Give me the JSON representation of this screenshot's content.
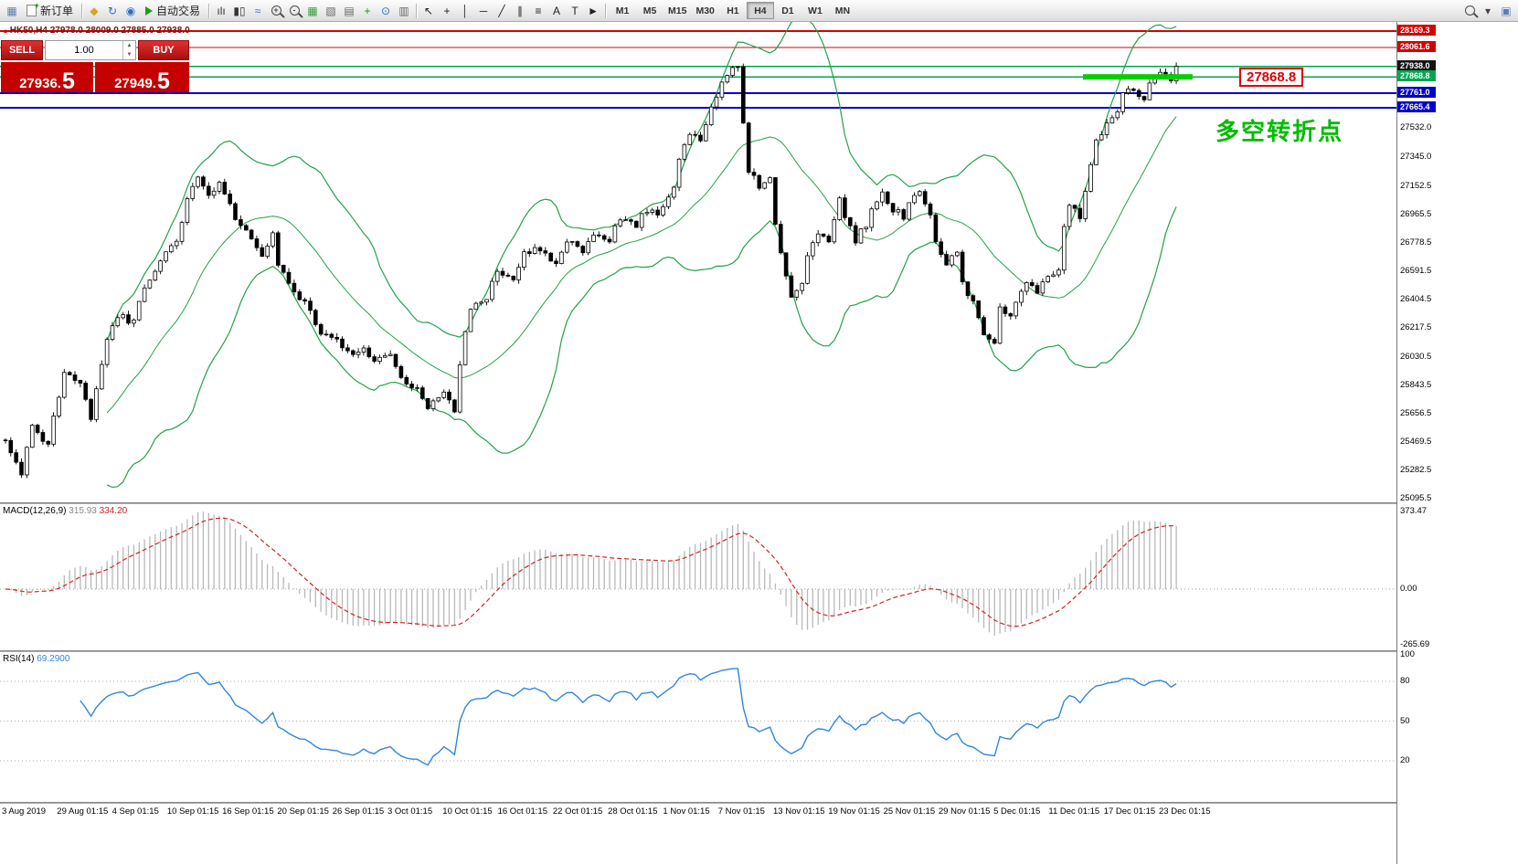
{
  "toolbar": {
    "new_order_label": "新订单",
    "autotrade_label": "自动交易",
    "timeframes": [
      "M1",
      "M5",
      "M15",
      "M30",
      "H1",
      "H4",
      "D1",
      "W1",
      "MN"
    ],
    "active_timeframe": "H4",
    "items": [
      {
        "t": "icon",
        "name": "chart-window-icon",
        "glyph": "▦",
        "c": "#5a7fb5"
      },
      {
        "t": "button",
        "name": "new-order-button",
        "icon": "doc",
        "label": "新订单"
      },
      {
        "t": "sep"
      },
      {
        "t": "icon",
        "name": "favorites-icon",
        "glyph": "◆",
        "c": "#d9a620"
      },
      {
        "t": "icon",
        "name": "refresh-icon",
        "glyph": "↻",
        "c": "#2f6fc4"
      },
      {
        "t": "icon",
        "name": "web-terminal-icon",
        "glyph": "◉",
        "c": "#2f6fc4"
      },
      {
        "t": "button",
        "name": "autotrade-button",
        "icon": "play",
        "label": "自动交易"
      },
      {
        "t": "sep"
      },
      {
        "t": "icon",
        "name": "bar-chart-icon",
        "glyph": "ılı",
        "c": "#333333"
      },
      {
        "t": "icon",
        "name": "candlestick-icon",
        "glyph": "▮▯",
        "c": "#333333"
      },
      {
        "t": "icon",
        "name": "line-chart-icon",
        "glyph": "≈",
        "c": "#2f6fc4"
      },
      {
        "t": "mag",
        "name": "zoom-in-icon",
        "sign": "+"
      },
      {
        "t": "mag",
        "name": "zoom-out-icon",
        "sign": "-"
      },
      {
        "t": "icon",
        "name": "tile-windows-icon",
        "glyph": "▦",
        "c": "#3a9d3a"
      },
      {
        "t": "icon",
        "name": "cascade-windows-icon",
        "glyph": "▧",
        "c": "#666666"
      },
      {
        "t": "icon",
        "name": "chart-profile-icon",
        "glyph": "▤",
        "c": "#666666"
      },
      {
        "t": "icon",
        "name": "indicators-icon",
        "glyph": "+",
        "c": "#0a9a0a"
      },
      {
        "t": "icon",
        "name": "periods-icon",
        "glyph": "⊙",
        "c": "#2f6fc4"
      },
      {
        "t": "icon",
        "name": "templates-icon",
        "glyph": "▥",
        "c": "#666666"
      },
      {
        "t": "sep"
      },
      {
        "t": "icon",
        "name": "cursor-icon",
        "glyph": "↖",
        "c": "#222222"
      },
      {
        "t": "icon",
        "name": "crosshair-icon",
        "glyph": "+",
        "c": "#222222"
      },
      {
        "t": "icon",
        "name": "vertical-line-icon",
        "glyph": "│",
        "c": "#222222"
      },
      {
        "t": "icon",
        "name": "horizontal-line-icon",
        "glyph": "─",
        "c": "#222222"
      },
      {
        "t": "icon",
        "name": "trendline-icon",
        "glyph": "╱",
        "c": "#222222"
      },
      {
        "t": "icon",
        "name": "channel-icon",
        "glyph": "∥",
        "c": "#222222"
      },
      {
        "t": "icon",
        "name": "fibonacci-icon",
        "glyph": "≡",
        "c": "#222222"
      },
      {
        "t": "icon",
        "name": "text-icon",
        "glyph": "A",
        "c": "#222222"
      },
      {
        "t": "icon",
        "name": "label-icon",
        "glyph": "T",
        "c": "#222222"
      },
      {
        "t": "icon",
        "name": "shapes-icon",
        "glyph": "►",
        "c": "#222222"
      },
      {
        "t": "sep"
      },
      {
        "t": "tfgroup"
      },
      {
        "t": "right"
      },
      {
        "t": "mag",
        "name": "search-icon",
        "sign": ""
      },
      {
        "t": "icon",
        "name": "search-dropdown-icon",
        "glyph": "▾",
        "c": "#444444"
      },
      {
        "t": "icon",
        "name": "new-window-icon",
        "glyph": "▣",
        "c": "#5a7fb5"
      }
    ]
  },
  "trade_panel": {
    "sell_label": "SELL",
    "buy_label": "BUY",
    "volume": "1.00",
    "spinner_up": "▲",
    "spinner_down": "▼",
    "sell_price_main": "27936.",
    "sell_price_big": "5",
    "buy_price_main": "27949.",
    "buy_price_big": "5"
  },
  "chart": {
    "title_marker": "▴",
    "title": "HK50,H4 27978.0 28009.0 27885.0 27938.0",
    "symbol": "HK50",
    "period": "H4",
    "ohlc": {
      "open": "27978.0",
      "high": "28009.0",
      "low": "27885.0",
      "close": "27938.0"
    },
    "annotation": "多空转折点",
    "floating_price_label": "27868.8",
    "levels": [
      {
        "value": "28169.3",
        "price": 28169.3,
        "line_color": "#d40000",
        "tag_bg": "#d40000",
        "thickness": 2
      },
      {
        "value": "28061.6",
        "price": 28061.6,
        "line_color": "#d40000",
        "tag_bg": "#d40000",
        "thickness": 1.2
      },
      {
        "value": "27938.0",
        "price": 27938.0,
        "line_color": "#00a651",
        "tag_bg": "#141414",
        "thickness": 1.2
      },
      {
        "value": "27868.8",
        "price": 27868.8,
        "line_color": "#00a651",
        "tag_bg": "#00a651",
        "thickness": 1.2
      },
      {
        "value": "27761.0",
        "price": 27761.0,
        "line_color": "#0000c8",
        "tag_bg": "#0000c8",
        "thickness": 2
      },
      {
        "value": "27665.4",
        "price": 27665.4,
        "line_color": "#0000c8",
        "tag_bg": "#0000c8",
        "thickness": 2
      }
    ],
    "highlight_segment": {
      "price": 27868.8,
      "x_from": 1185,
      "x_to": 1305,
      "color": "#00d000"
    },
    "scale_labels": [
      "27532.0",
      "27345.0",
      "27152.5",
      "26965.5",
      "26778.5",
      "26591.5",
      "26404.5",
      "26217.5",
      "26030.5",
      "25843.5",
      "25656.5",
      "25469.5",
      "25282.5",
      "25095.5"
    ]
  },
  "chart_data": {
    "type": "candlestick",
    "symbol": "HK50",
    "timeframe": "H4",
    "candle_count": 220,
    "x_step": 5.85,
    "x_origin": 6,
    "seed": 987654321,
    "close_noise": 50,
    "wick_noise": 26,
    "last_close": 27938.0,
    "y_range": {
      "top": 28230,
      "bottom": 25074
    },
    "price_anchors": [
      [
        0,
        25480
      ],
      [
        3,
        25270
      ],
      [
        5,
        25560
      ],
      [
        8,
        25450
      ],
      [
        11,
        25950
      ],
      [
        14,
        25850
      ],
      [
        16,
        25620
      ],
      [
        19,
        26150
      ],
      [
        21,
        26300
      ],
      [
        24,
        26250
      ],
      [
        26,
        26500
      ],
      [
        29,
        26650
      ],
      [
        32,
        26800
      ],
      [
        34,
        27050
      ],
      [
        36,
        27230
      ],
      [
        38,
        27100
      ],
      [
        40,
        27180
      ],
      [
        43,
        26950
      ],
      [
        45,
        26850
      ],
      [
        48,
        26700
      ],
      [
        50,
        26820
      ],
      [
        51,
        26650
      ],
      [
        54,
        26450
      ],
      [
        56,
        26380
      ],
      [
        59,
        26200
      ],
      [
        62,
        26150
      ],
      [
        64,
        26050
      ],
      [
        67,
        26100
      ],
      [
        69,
        25980
      ],
      [
        72,
        26050
      ],
      [
        74,
        25900
      ],
      [
        77,
        25820
      ],
      [
        79,
        25700
      ],
      [
        82,
        25780
      ],
      [
        84,
        25680
      ],
      [
        85,
        26000
      ],
      [
        87,
        26350
      ],
      [
        90,
        26420
      ],
      [
        92,
        26600
      ],
      [
        95,
        26550
      ],
      [
        97,
        26700
      ],
      [
        100,
        26750
      ],
      [
        103,
        26650
      ],
      [
        105,
        26800
      ],
      [
        108,
        26720
      ],
      [
        110,
        26850
      ],
      [
        113,
        26800
      ],
      [
        115,
        26950
      ],
      [
        118,
        26900
      ],
      [
        120,
        27000
      ],
      [
        122,
        26950
      ],
      [
        125,
        27150
      ],
      [
        126,
        27350
      ],
      [
        128,
        27500
      ],
      [
        130,
        27450
      ],
      [
        132,
        27650
      ],
      [
        133,
        27750
      ],
      [
        135,
        27900
      ],
      [
        137,
        27950
      ],
      [
        138,
        27550
      ],
      [
        139,
        27250
      ],
      [
        141,
        27150
      ],
      [
        143,
        27200
      ],
      [
        144,
        26900
      ],
      [
        146,
        26550
      ],
      [
        147,
        26400
      ],
      [
        149,
        26500
      ],
      [
        150,
        26700
      ],
      [
        152,
        26850
      ],
      [
        154,
        26800
      ],
      [
        156,
        27050
      ],
      [
        157,
        26950
      ],
      [
        159,
        26800
      ],
      [
        161,
        26900
      ],
      [
        162,
        27000
      ],
      [
        164,
        27100
      ],
      [
        166,
        27000
      ],
      [
        168,
        26950
      ],
      [
        169,
        27050
      ],
      [
        171,
        27100
      ],
      [
        173,
        26950
      ],
      [
        174,
        26800
      ],
      [
        176,
        26650
      ],
      [
        178,
        26700
      ],
      [
        179,
        26500
      ],
      [
        181,
        26400
      ],
      [
        183,
        26150
      ],
      [
        185,
        26100
      ],
      [
        186,
        26350
      ],
      [
        188,
        26300
      ],
      [
        190,
        26450
      ],
      [
        191,
        26500
      ],
      [
        193,
        26450
      ],
      [
        195,
        26550
      ],
      [
        197,
        26600
      ],
      [
        198,
        26900
      ],
      [
        199,
        27050
      ],
      [
        201,
        26950
      ],
      [
        203,
        27300
      ],
      [
        204,
        27450
      ],
      [
        206,
        27550
      ],
      [
        208,
        27650
      ],
      [
        209,
        27750
      ],
      [
        211,
        27800
      ],
      [
        213,
        27700
      ],
      [
        214,
        27850
      ],
      [
        216,
        27900
      ],
      [
        218,
        27850
      ],
      [
        219,
        27938
      ]
    ],
    "indicators": {
      "bollinger": {
        "period": 20,
        "deviation": 2,
        "color": "#22a14a"
      },
      "macd": {
        "label": "MACD(12,26,9)",
        "main_value": "315.93",
        "signal_value": "334.20",
        "scale": [
          "373.47",
          "0.00",
          "-265.69"
        ],
        "histogram_color": "#b8b8b8",
        "signal_color": "#d22222"
      },
      "rsi": {
        "label": "RSI(14)",
        "value": "69.2900",
        "scale": [
          "100",
          "80",
          "50",
          "20"
        ],
        "guides": [
          80,
          50,
          20
        ],
        "color": "#2f86e0"
      }
    },
    "x_labels": [
      "3 Aug 2019",
      "29 Aug 01:15",
      "4 Sep 01:15",
      "10 Sep 01:15",
      "16 Sep 01:15",
      "20 Sep 01:15",
      "26 Sep 01:15",
      "3 Oct 01:15",
      "10 Oct 01:15",
      "16 Oct 01:15",
      "22 Oct 01:15",
      "28 Oct 01:15",
      "1 Nov 01:15",
      "7 Nov 01:15",
      "13 Nov 01:15",
      "19 Nov 01:15",
      "25 Nov 01:15",
      "29 Nov 01:15",
      "5 Dec 01:15",
      "11 Dec 01:15",
      "17 Dec 01:15",
      "23 Dec 01:15"
    ]
  }
}
